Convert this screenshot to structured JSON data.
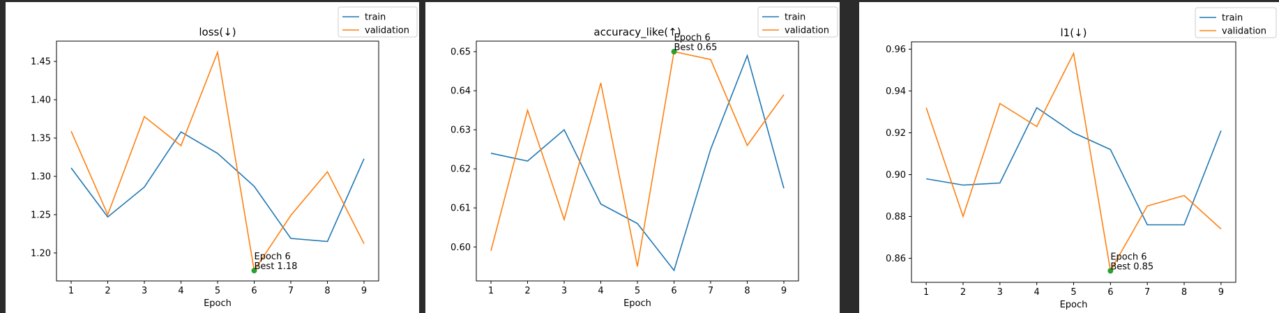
{
  "colors": {
    "train": "#1f77b4",
    "validation": "#ff7f0e",
    "best": "#2ca02c"
  },
  "chart_data": [
    {
      "type": "line",
      "title": "loss(↓)",
      "xlabel": "Epoch",
      "ylabel": "",
      "x": [
        1,
        2,
        3,
        4,
        5,
        6,
        7,
        8,
        9
      ],
      "xticks": [
        1,
        2,
        3,
        4,
        5,
        6,
        7,
        8,
        9
      ],
      "yticks": [
        1.2,
        1.25,
        1.3,
        1.35,
        1.4,
        1.45
      ],
      "ytick_labels": [
        "1.20",
        "1.25",
        "1.30",
        "1.35",
        "1.40",
        "1.45"
      ],
      "ylim": [
        1.1635,
        1.4765
      ],
      "series": [
        {
          "name": "train",
          "values": [
            1.311,
            1.247,
            1.286,
            1.358,
            1.33,
            1.287,
            1.219,
            1.215,
            1.323
          ]
        },
        {
          "name": "validation",
          "values": [
            1.359,
            1.25,
            1.378,
            1.34,
            1.462,
            1.177,
            1.249,
            1.306,
            1.212
          ]
        }
      ],
      "best": {
        "x": 6,
        "y": 1.177,
        "label_line1": "Epoch 6",
        "label_line2": "Best 1.18"
      },
      "legend": "top-right"
    },
    {
      "type": "line",
      "title": "accuracy_like(↑)",
      "xlabel": "Epoch",
      "ylabel": "",
      "x": [
        1,
        2,
        3,
        4,
        5,
        6,
        7,
        8,
        9
      ],
      "xticks": [
        1,
        2,
        3,
        4,
        5,
        6,
        7,
        8,
        9
      ],
      "yticks": [
        0.6,
        0.61,
        0.62,
        0.63,
        0.64,
        0.65
      ],
      "ytick_labels": [
        "0.60",
        "0.61",
        "0.62",
        "0.63",
        "0.64",
        "0.65"
      ],
      "ylim": [
        0.5913,
        0.6527
      ],
      "series": [
        {
          "name": "train",
          "values": [
            0.624,
            0.622,
            0.63,
            0.611,
            0.606,
            0.594,
            0.625,
            0.649,
            0.615
          ]
        },
        {
          "name": "validation",
          "values": [
            0.599,
            0.635,
            0.607,
            0.642,
            0.595,
            0.65,
            0.648,
            0.626,
            0.639
          ]
        }
      ],
      "best": {
        "x": 6,
        "y": 0.65,
        "label_line1": "Epoch 6",
        "label_line2": "Best 0.65"
      },
      "legend": "top-right"
    },
    {
      "type": "line",
      "title": "l1(↓)",
      "xlabel": "Epoch",
      "ylabel": "",
      "x": [
        1,
        2,
        3,
        4,
        5,
        6,
        7,
        8,
        9
      ],
      "xticks": [
        1,
        2,
        3,
        4,
        5,
        6,
        7,
        8,
        9
      ],
      "yticks": [
        0.86,
        0.88,
        0.9,
        0.92,
        0.94,
        0.96
      ],
      "ytick_labels": [
        "0.86",
        "0.88",
        "0.90",
        "0.92",
        "0.94",
        "0.96"
      ],
      "ylim": [
        0.8485,
        0.9635
      ],
      "series": [
        {
          "name": "train",
          "values": [
            0.898,
            0.895,
            0.896,
            0.932,
            0.92,
            0.912,
            0.876,
            0.876,
            0.921
          ]
        },
        {
          "name": "validation",
          "values": [
            0.932,
            0.88,
            0.934,
            0.923,
            0.958,
            0.854,
            0.885,
            0.89,
            0.874
          ]
        }
      ],
      "best": {
        "x": 6,
        "y": 0.854,
        "label_line1": "Epoch 6",
        "label_line2": "Best 0.85"
      },
      "legend": "top-right"
    }
  ]
}
